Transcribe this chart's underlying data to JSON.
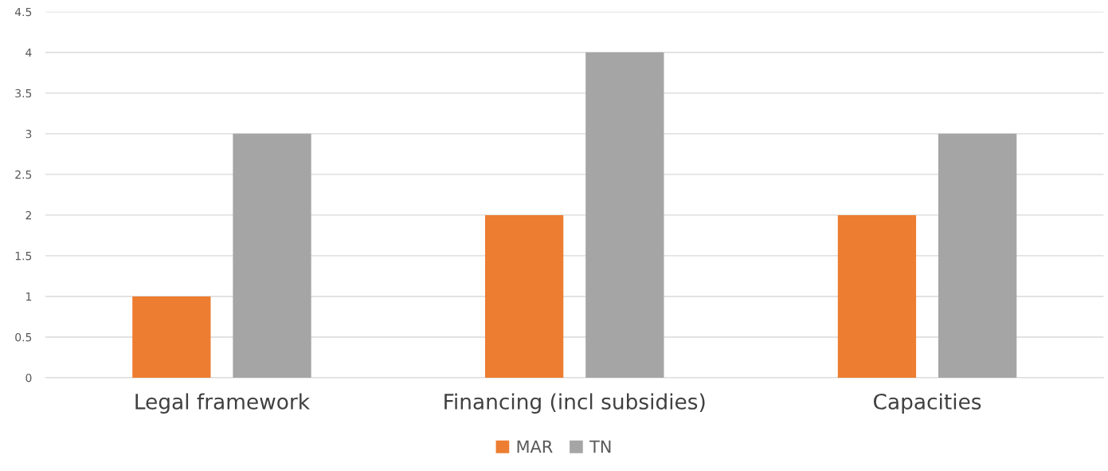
{
  "chart_data": {
    "type": "bar",
    "categories": [
      "Legal framework",
      "Financing (incl subsidies)",
      "Capacities"
    ],
    "series": [
      {
        "name": "MAR",
        "color": "#ed7d31",
        "values": [
          1,
          2,
          2
        ]
      },
      {
        "name": "TN",
        "color": "#a5a5a5",
        "values": [
          3,
          4,
          3
        ]
      }
    ],
    "ylim": [
      0,
      4.5
    ],
    "yticks": [
      0,
      0.5,
      1,
      1.5,
      2,
      2.5,
      3,
      3.5,
      4,
      4.5
    ],
    "grid": "y",
    "legend": "bottom"
  }
}
